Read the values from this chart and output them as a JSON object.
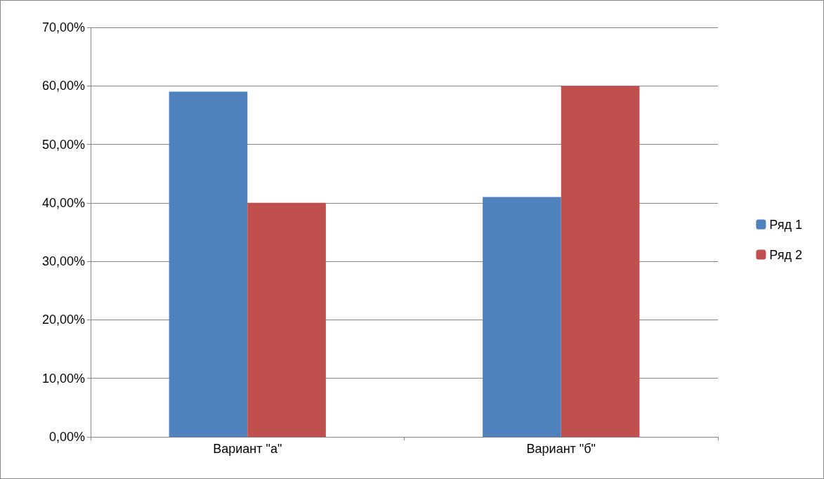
{
  "chart_data": {
    "type": "bar",
    "categories": [
      "Вариант \"а\"",
      "Вариант \"б\""
    ],
    "series": [
      {
        "name": "Ряд 1",
        "color": "#4f81bd",
        "values": [
          59,
          41
        ]
      },
      {
        "name": "Ряд 2",
        "color": "#c0504d",
        "values": [
          40,
          60
        ]
      }
    ],
    "ylim": [
      0,
      70
    ],
    "yticks": [
      {
        "value": 0,
        "label": "0,00%"
      },
      {
        "value": 10,
        "label": "10,00%"
      },
      {
        "value": 20,
        "label": "20,00%"
      },
      {
        "value": 30,
        "label": "30,00%"
      },
      {
        "value": 40,
        "label": "40,00%"
      },
      {
        "value": 50,
        "label": "50,00%"
      },
      {
        "value": 60,
        "label": "60,00%"
      },
      {
        "value": 70,
        "label": "70,00%"
      }
    ],
    "grid": "y",
    "legend": "right"
  }
}
